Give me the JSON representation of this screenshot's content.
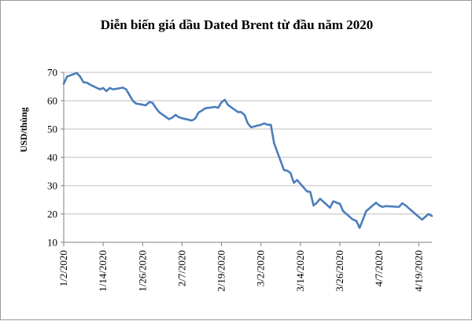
{
  "chart_data": {
    "type": "line",
    "title": "Diễn biến giá dầu Dated Brent từ đầu năm 2020",
    "xlabel": "",
    "ylabel": "USD/thùng",
    "ylim": [
      10,
      70
    ],
    "yticks": [
      10,
      20,
      30,
      40,
      50,
      60,
      70
    ],
    "xlim": [
      "2020-01-02",
      "2020-04-23"
    ],
    "xticks": [
      "1/2/2020",
      "1/14/2020",
      "1/26/2020",
      "2/7/2020",
      "2/19/2020",
      "3/2/2020",
      "3/14/2020",
      "3/26/2020",
      "4/7/2020",
      "4/19/2020"
    ],
    "grid": "horizontal",
    "legend": "none",
    "colors": {
      "line": "#4a7ebb",
      "grid": "#bfbfbf",
      "axis": "#808080"
    },
    "series": [
      {
        "x": [
          "2020-01-02",
          "2020-01-03",
          "2020-01-06",
          "2020-01-07",
          "2020-01-08",
          "2020-01-09",
          "2020-01-10",
          "2020-01-13",
          "2020-01-14",
          "2020-01-15",
          "2020-01-16",
          "2020-01-17",
          "2020-01-20",
          "2020-01-21",
          "2020-01-22",
          "2020-01-23",
          "2020-01-24",
          "2020-01-27",
          "2020-01-28",
          "2020-01-29",
          "2020-01-30",
          "2020-01-31",
          "2020-02-03",
          "2020-02-04",
          "2020-02-05",
          "2020-02-06",
          "2020-02-07",
          "2020-02-10",
          "2020-02-11",
          "2020-02-12",
          "2020-02-13",
          "2020-02-14",
          "2020-02-17",
          "2020-02-18",
          "2020-02-19",
          "2020-02-20",
          "2020-02-21",
          "2020-02-24",
          "2020-02-25",
          "2020-02-26",
          "2020-02-27",
          "2020-02-28",
          "2020-03-02",
          "2020-03-03",
          "2020-03-04",
          "2020-03-05",
          "2020-03-06",
          "2020-03-09",
          "2020-03-10",
          "2020-03-11",
          "2020-03-12",
          "2020-03-13",
          "2020-03-16",
          "2020-03-17",
          "2020-03-18",
          "2020-03-19",
          "2020-03-20",
          "2020-03-23",
          "2020-03-24",
          "2020-03-25",
          "2020-03-26",
          "2020-03-27",
          "2020-03-30",
          "2020-03-31",
          "2020-04-01",
          "2020-04-02",
          "2020-04-03",
          "2020-04-06",
          "2020-04-07",
          "2020-04-08",
          "2020-04-09",
          "2020-04-13",
          "2020-04-14",
          "2020-04-15",
          "2020-04-16",
          "2020-04-17",
          "2020-04-20",
          "2020-04-21",
          "2020-04-22",
          "2020-04-23"
        ],
        "values": [
          66.0,
          68.5,
          69.8,
          68.5,
          66.5,
          66.4,
          65.7,
          64.0,
          64.5,
          63.4,
          64.5,
          64.0,
          64.6,
          64.0,
          62.0,
          60.0,
          59.0,
          58.4,
          59.5,
          59.3,
          57.5,
          56.0,
          53.5,
          54.0,
          55.0,
          54.2,
          53.8,
          53.0,
          53.7,
          55.8,
          56.5,
          57.3,
          57.8,
          57.5,
          59.5,
          60.3,
          58.5,
          56.0,
          56.0,
          55.0,
          52.0,
          50.6,
          51.5,
          52.0,
          51.5,
          51.5,
          45.0,
          35.5,
          35.3,
          34.5,
          31.0,
          32.0,
          28.0,
          27.8,
          23.0,
          24.0,
          25.4,
          22.2,
          24.5,
          24.0,
          23.6,
          21.0,
          18.0,
          17.6,
          15.1,
          18.0,
          21.0,
          24.0,
          23.0,
          22.5,
          22.8,
          22.5,
          23.8,
          23.0,
          22.0,
          21.0,
          18.0,
          19.0,
          20.0,
          19.3
        ]
      }
    ]
  }
}
